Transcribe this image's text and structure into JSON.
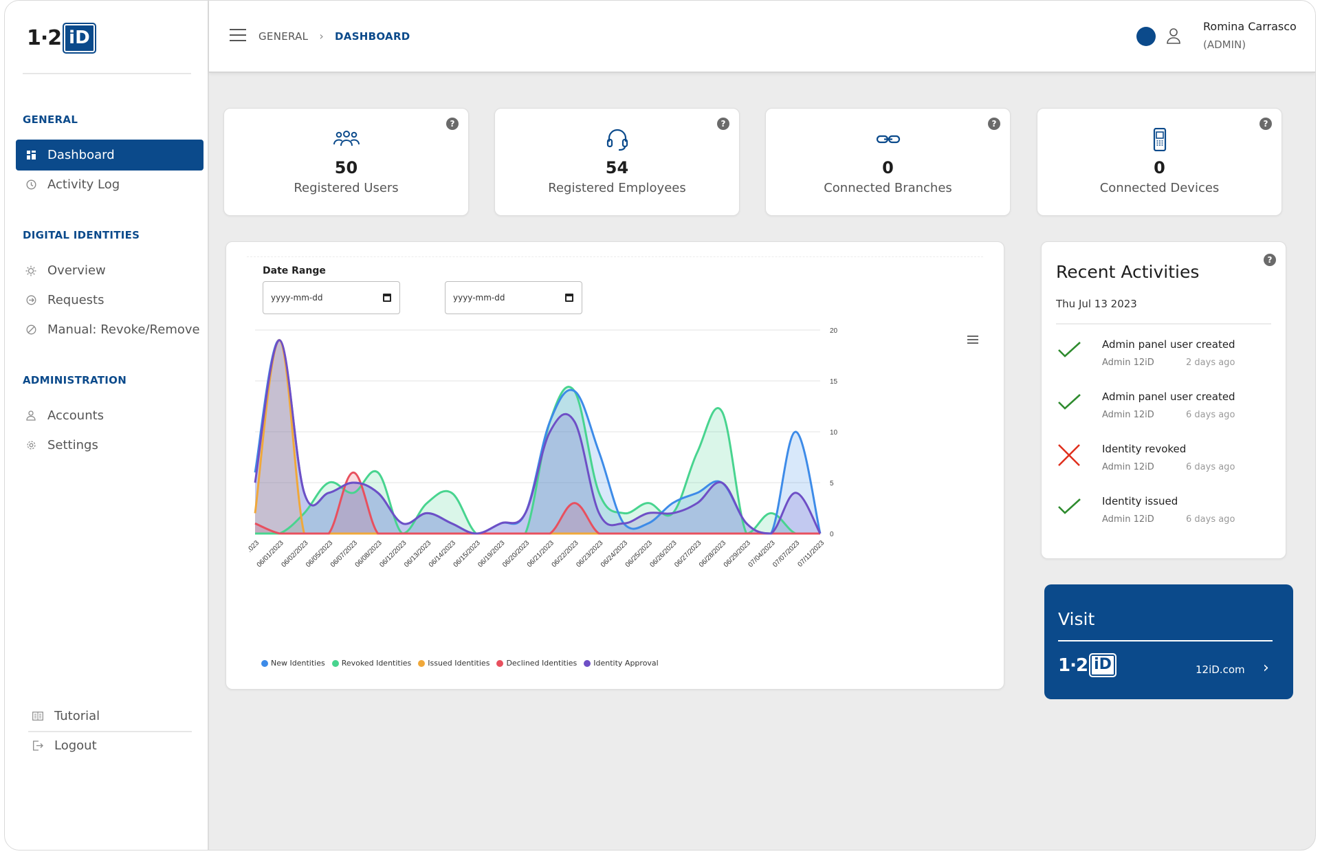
{
  "logo": {
    "num": "1·2",
    "box": "iD"
  },
  "sidebar": {
    "sections": [
      {
        "title": "GENERAL",
        "items": [
          {
            "label": "Dashboard",
            "icon": "grid-icon",
            "active": true
          },
          {
            "label": "Activity Log",
            "icon": "clock-icon"
          }
        ]
      },
      {
        "title": "DIGITAL IDENTITIES",
        "items": [
          {
            "label": "Overview",
            "icon": "sun-icon"
          },
          {
            "label": "Requests",
            "icon": "arrow-circle-icon"
          },
          {
            "label": "Manual: Revoke/Remove",
            "icon": "ban-icon"
          }
        ]
      },
      {
        "title": "ADMINISTRATION",
        "items": [
          {
            "label": "Accounts",
            "icon": "user-icon"
          },
          {
            "label": "Settings",
            "icon": "gear-icon"
          }
        ]
      }
    ],
    "bottom": [
      {
        "label": "Tutorial",
        "icon": "book-icon"
      },
      {
        "label": "Logout",
        "icon": "logout-icon"
      }
    ]
  },
  "header": {
    "breadcrumb": [
      "GENERAL",
      "DASHBOARD"
    ],
    "user": {
      "name": "Romina Carrasco",
      "role": "(ADMIN)"
    }
  },
  "stats": [
    {
      "value": "50",
      "label": "Registered Users",
      "icon": "users-icon"
    },
    {
      "value": "54",
      "label": "Registered Employees",
      "icon": "headset-icon"
    },
    {
      "value": "0",
      "label": "Connected Branches",
      "icon": "link-icon"
    },
    {
      "value": "0",
      "label": "Connected Devices",
      "icon": "phone-icon"
    }
  ],
  "help_glyph": "?",
  "chart": {
    "date_range_label": "Date Range",
    "start_placeholder": "yyyy-mm-dd",
    "end_placeholder": "yyyy-mm-dd"
  },
  "chart_data": {
    "type": "area",
    "categories": [
      ".023",
      "06/01/2023",
      "06/02/2023",
      "06/05/2023",
      "06/07/2023",
      "06/08/2023",
      "06/12/2023",
      "06/13/2023",
      "06/14/2023",
      "06/15/2023",
      "06/19/2023",
      "06/20/2023",
      "06/21/2023",
      "06/22/2023",
      "06/23/2023",
      "06/24/2023",
      "06/25/2023",
      "06/26/2023",
      "06/27/2023",
      "06/28/2023",
      "06/29/2023",
      "07/04/2023",
      "07/07/2023",
      "07/11/2023"
    ],
    "ylim": [
      0,
      20
    ],
    "y_ticks": [
      0,
      5,
      10,
      15,
      20
    ],
    "axis_side": "right",
    "legend_position": "bottom-left",
    "series": [
      {
        "name": "New Identities",
        "color": "#3d8be8",
        "values": [
          6,
          19,
          4,
          4,
          5,
          4,
          1,
          2,
          1,
          0,
          1,
          2,
          11,
          14,
          8,
          1,
          1,
          3,
          4,
          5,
          1,
          0,
          10,
          0
        ]
      },
      {
        "name": "Revoked Identities",
        "color": "#48d48f",
        "values": [
          0,
          0,
          2,
          5,
          4,
          6,
          0,
          3,
          4,
          0,
          0,
          0,
          11,
          14,
          4,
          2,
          3,
          2,
          8,
          12,
          0,
          2,
          0,
          0
        ]
      },
      {
        "name": "Issued Identities",
        "color": "#f0a83a",
        "values": [
          2,
          19,
          0,
          0,
          0,
          0,
          0,
          0,
          0,
          0,
          0,
          0,
          0,
          0,
          0,
          0,
          0,
          0,
          0,
          0,
          0,
          0,
          0,
          0
        ]
      },
      {
        "name": "Declined Identities",
        "color": "#e8505e",
        "values": [
          1,
          0,
          0,
          0,
          6,
          0,
          0,
          0,
          0,
          0,
          0,
          0,
          0,
          3,
          0,
          0,
          0,
          0,
          0,
          0,
          0,
          0,
          0,
          0
        ]
      },
      {
        "name": "Identity Approval",
        "color": "#6e4fc6",
        "values": [
          5,
          19,
          4,
          4,
          5,
          4,
          1,
          2,
          1,
          0,
          1,
          2,
          10,
          11,
          2,
          1,
          2,
          2,
          3,
          5,
          1,
          0,
          4,
          0
        ]
      }
    ]
  },
  "recent": {
    "title": "Recent Activities",
    "date": "Thu Jul 13 2023",
    "items": [
      {
        "title": "Admin panel user created",
        "by": "Admin 12iD",
        "time": "2 days ago",
        "status": "success"
      },
      {
        "title": "Admin panel user created",
        "by": "Admin 12iD",
        "time": "6 days ago",
        "status": "success"
      },
      {
        "title": "Identity revoked",
        "by": "Admin 12iD",
        "time": "6 days ago",
        "status": "error"
      },
      {
        "title": "Identity issued",
        "by": "Admin 12iD",
        "time": "6 days ago",
        "status": "success"
      }
    ]
  },
  "visit": {
    "title": "Visit",
    "link": "12iD.com",
    "arrow": "›"
  },
  "colors": {
    "brand": "#0b4a8b",
    "success": "#2e8b2e",
    "error": "#e0301e"
  }
}
